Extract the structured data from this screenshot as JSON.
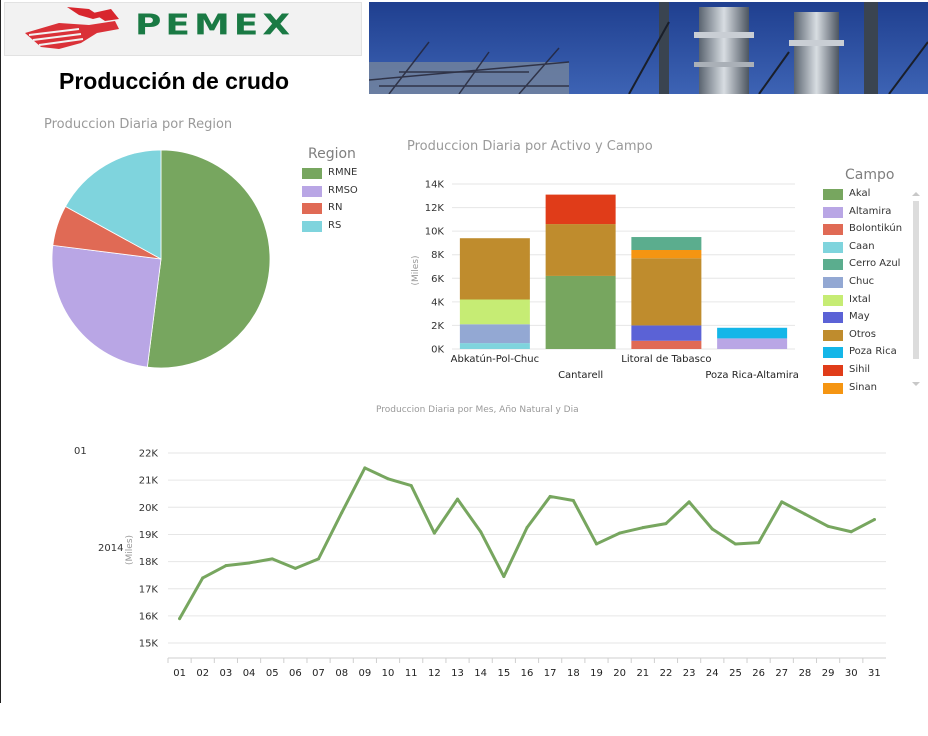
{
  "header": {
    "logo_text": "PEMEX",
    "title": "Producción de crudo"
  },
  "pie": {
    "title": "Produccion Diaria por Region",
    "legend_title": "Region"
  },
  "bar": {
    "title": "Produccion Diaria por Activo y Campo",
    "ylabel": "(Miles)",
    "legend_title": "Campo"
  },
  "line": {
    "title": "Produccion Diaria por Mes, Año Natural y Dia",
    "ylabel": "(Miles)",
    "month_label": "01",
    "year_label": "2014"
  },
  "chart_data": [
    {
      "type": "pie",
      "title": "Produccion Diaria por Region",
      "legend_title": "Region",
      "legend_placement": "right",
      "slices": [
        {
          "label": "RMNE",
          "value": 52,
          "color": "#77a65f"
        },
        {
          "label": "RMSO",
          "value": 25,
          "color": "#b9a6e5"
        },
        {
          "label": "RN",
          "value": 6,
          "color": "#e06a55"
        },
        {
          "label": "RS",
          "value": 17,
          "color": "#7fd4dd"
        }
      ]
    },
    {
      "type": "bar",
      "stacked": true,
      "title": "Produccion Diaria por Activo y Campo",
      "ylabel": "(Miles)",
      "ylim": [
        0,
        14000
      ],
      "yticks": [
        0,
        2000,
        4000,
        6000,
        8000,
        10000,
        12000,
        14000
      ],
      "ytick_labels": [
        "0K",
        "2K",
        "4K",
        "6K",
        "8K",
        "10K",
        "12K",
        "14K"
      ],
      "grid": true,
      "categories": [
        "Abkatún-Pol-Chuc",
        "Cantarell",
        "Litoral de Tabasco",
        "Poza Rica-Altamira"
      ],
      "legend_title": "Campo",
      "legend_placement": "right",
      "legend": [
        {
          "name": "Akal",
          "color": "#77a65f"
        },
        {
          "name": "Altamira",
          "color": "#b9a6e5"
        },
        {
          "name": "Bolontikún",
          "color": "#e06a55"
        },
        {
          "name": "Caan",
          "color": "#7fd4dd"
        },
        {
          "name": "Cerro Azul",
          "color": "#5bad8e"
        },
        {
          "name": "Chuc",
          "color": "#93a8d3"
        },
        {
          "name": "Ixtal",
          "color": "#c6ec74"
        },
        {
          "name": "May",
          "color": "#5b62d6"
        },
        {
          "name": "Otros",
          "color": "#bf8c2d"
        },
        {
          "name": "Poza Rica",
          "color": "#14b6e8"
        },
        {
          "name": "Sihil",
          "color": "#e03c19"
        },
        {
          "name": "Sinan",
          "color": "#f59512"
        }
      ],
      "segments": [
        {
          "category": "Abkatún-Pol-Chuc",
          "campo": "Caan",
          "value": 500
        },
        {
          "category": "Abkatún-Pol-Chuc",
          "campo": "Chuc",
          "value": 1600
        },
        {
          "category": "Abkatún-Pol-Chuc",
          "campo": "Ixtal",
          "value": 2100
        },
        {
          "category": "Abkatún-Pol-Chuc",
          "campo": "Otros",
          "value": 5200
        },
        {
          "category": "Cantarell",
          "campo": "Akal",
          "value": 6200
        },
        {
          "category": "Cantarell",
          "campo": "Otros",
          "value": 4400
        },
        {
          "category": "Cantarell",
          "campo": "Sihil",
          "value": 2500
        },
        {
          "category": "Litoral de Tabasco",
          "campo": "Bolontikún",
          "value": 700
        },
        {
          "category": "Litoral de Tabasco",
          "campo": "May",
          "value": 1300
        },
        {
          "category": "Litoral de Tabasco",
          "campo": "Otros",
          "value": 5700
        },
        {
          "category": "Litoral de Tabasco",
          "campo": "Sinan",
          "value": 700
        },
        {
          "category": "Litoral de Tabasco",
          "campo": "Cerro Azul",
          "value": 1100
        },
        {
          "category": "Poza Rica-Altamira",
          "campo": "Altamira",
          "value": 900
        },
        {
          "category": "Poza Rica-Altamira",
          "campo": "Poza Rica",
          "value": 900
        }
      ]
    },
    {
      "type": "line",
      "title": "Produccion Diaria por Mes, Año Natural y Dia",
      "ylabel": "(Miles)",
      "ylim": [
        15000,
        22000
      ],
      "yticks": [
        15000,
        16000,
        17000,
        18000,
        19000,
        20000,
        21000,
        22000
      ],
      "ytick_labels": [
        "15K",
        "16K",
        "17K",
        "18K",
        "19K",
        "20K",
        "21K",
        "22K"
      ],
      "grid": true,
      "x": [
        "01",
        "02",
        "03",
        "04",
        "05",
        "06",
        "07",
        "08",
        "09",
        "10",
        "11",
        "12",
        "13",
        "14",
        "15",
        "16",
        "17",
        "18",
        "19",
        "20",
        "21",
        "22",
        "23",
        "24",
        "25",
        "26",
        "27",
        "28",
        "29",
        "30",
        "31"
      ],
      "series": [
        {
          "color": "#77a65f",
          "values": [
            15900,
            17400,
            17850,
            17950,
            18100,
            17750,
            18100,
            19800,
            21450,
            21050,
            20800,
            19050,
            20300,
            19100,
            17450,
            19250,
            20400,
            20250,
            18650,
            19050,
            19250,
            19400,
            20200,
            19200,
            18650,
            18700,
            20200,
            19750,
            19300,
            19100,
            19550
          ]
        }
      ]
    }
  ]
}
